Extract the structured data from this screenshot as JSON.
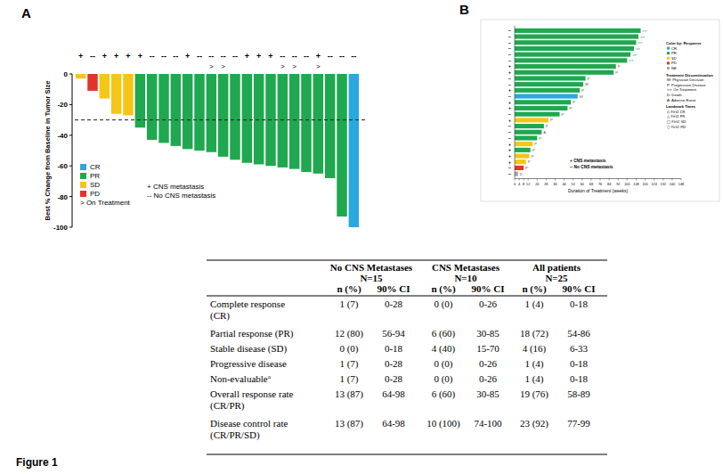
{
  "figure_label": "Figure 1",
  "chart_data": [
    {
      "type": "bar",
      "panel_label": "A",
      "y_label": "Best % Change from Baseline in Tumor Size",
      "categories": [
        null,
        null,
        null,
        null,
        null,
        null,
        null,
        null,
        null,
        null,
        null,
        null,
        null,
        null,
        null,
        null,
        null,
        null,
        null,
        null,
        null,
        null,
        null,
        null
      ],
      "values": [
        -3,
        -11,
        -16,
        -26,
        -27,
        -35,
        -43,
        -45,
        -47,
        -49,
        -50,
        -51,
        -54,
        -56,
        -58,
        -59,
        -60,
        -61,
        -62,
        -64,
        -65,
        -68,
        -93,
        -100
      ],
      "colors": [
        "#f5c518",
        "#e2342b",
        "#f5c518",
        "#f5c518",
        "#f5c518",
        "#1fa84f",
        "#1fa84f",
        "#1fa84f",
        "#1fa84f",
        "#1fa84f",
        "#1fa84f",
        "#1fa84f",
        "#1fa84f",
        "#1fa84f",
        "#1fa84f",
        "#1fa84f",
        "#1fa84f",
        "#1fa84f",
        "#1fa84f",
        "#1fa84f",
        "#1fa84f",
        "#1fa84f",
        "#1fa84f",
        "#29a8e0"
      ],
      "ylim": [
        -100,
        0
      ],
      "yticks": [
        0,
        -20,
        -40,
        -60,
        -80,
        -100
      ],
      "reference_line": -30,
      "cns_labels": [
        "+",
        "--",
        "+",
        "+",
        "+",
        "+",
        "--",
        "--",
        "--",
        "+",
        "--",
        "--",
        "--",
        "--",
        "+",
        "+",
        "+",
        "--",
        "--",
        "--",
        "+",
        "--",
        "--",
        "--"
      ],
      "on_treatment_labels": [
        null,
        null,
        null,
        null,
        null,
        null,
        null,
        null,
        null,
        null,
        null,
        ">",
        ">",
        null,
        null,
        null,
        null,
        ">",
        ">",
        null,
        ">",
        null,
        null,
        null
      ],
      "legend_items": [
        {
          "name": "CR",
          "color": "#29a8e0"
        },
        {
          "name": "PR",
          "color": "#1fa84f"
        },
        {
          "name": "SD",
          "color": "#f5c518"
        },
        {
          "name": "PD",
          "color": "#e2342b"
        }
      ],
      "on_treatment_legend": ">  On Treatment",
      "cns_legend": [
        "+ CNS metastasis",
        "-- No CNS metastasis"
      ]
    },
    {
      "type": "bar",
      "orientation": "horizontal",
      "panel_label": "B",
      "x_label": "Duration of Treatment (weeks)",
      "categories": [
        "--",
        "--",
        "--",
        "--",
        "--",
        "--",
        "+",
        "+",
        "--",
        "--",
        "+",
        "--",
        "+",
        "+",
        "--",
        "+",
        "--",
        "--",
        "--",
        "+",
        "+",
        "+",
        "+",
        "--",
        "--"
      ],
      "values": [
        112,
        110,
        108,
        106,
        103,
        100,
        90,
        88,
        63,
        61,
        58,
        56,
        50,
        47,
        40,
        30,
        26,
        24,
        20,
        16,
        14,
        13,
        10,
        8,
        3
      ],
      "colors": [
        "#1fa84f",
        "#1fa84f",
        "#1fa84f",
        "#1fa84f",
        "#1fa84f",
        "#1fa84f",
        "#1fa84f",
        "#1fa84f",
        "#1fa84f",
        "#1fa84f",
        "#1fa84f",
        "#29a8e0",
        "#1fa84f",
        "#1fa84f",
        "#1fa84f",
        "#f5c518",
        "#1fa84f",
        "#1fa84f",
        "#1fa84f",
        "#f5c518",
        "#1fa84f",
        "#f5c518",
        "#f5c518",
        "#e2342b",
        "#a6a6a6"
      ],
      "end_labels": [
        ">>",
        ">>",
        ">>",
        ">>",
        ">>",
        ">>",
        "P",
        "P",
        "P",
        "W",
        "P",
        "W",
        "P",
        "P",
        "P",
        "P",
        "P",
        "A",
        "P",
        "P",
        "P",
        "P",
        "P",
        "P",
        "D"
      ],
      "xlim": [
        0,
        148
      ],
      "xticks": [
        0,
        4,
        8,
        12,
        20,
        28,
        36,
        44,
        52,
        60,
        68,
        76,
        84,
        92,
        100,
        108,
        116,
        124,
        132,
        140,
        148
      ],
      "legend_title": "Color by: Response",
      "legend_items": [
        {
          "name": "CR",
          "color": "#29a8e0"
        },
        {
          "name": "PR",
          "color": "#1fa84f"
        },
        {
          "name": "SD",
          "color": "#f5c518"
        },
        {
          "name": "PD",
          "color": "#e2342b"
        },
        {
          "name": "NE",
          "color": "#a6a6a6"
        }
      ],
      "discontinuation_title": "Treatment Discontinuation",
      "discontinuation_items": [
        "W: Physician Decision",
        "P: Progressive Disease",
        ">>: On Treatment",
        "D: Death",
        "A: Adverse Event"
      ],
      "landmark_title": "Landmark Times",
      "landmark_items": [
        "◇ First CR",
        "△ First PR",
        "□ First SD",
        "○ First PD"
      ],
      "cns_legend": [
        "+ CNS metastasis",
        "-- No CNS metastasis"
      ]
    }
  ],
  "table": {
    "groups": [
      {
        "title": "No CNS Metastases",
        "n": "N=15"
      },
      {
        "title": "CNS Metastases",
        "n": "N=10"
      },
      {
        "title": "All patients",
        "n": "N=25"
      }
    ],
    "sub_headers": [
      "n (%)",
      "90% CI",
      "n (%)",
      "90% CI",
      "n (%)",
      "90% CI"
    ],
    "rows": [
      {
        "label_lines": [
          "Complete response",
          "(CR)"
        ],
        "cells": [
          "1 (7)",
          "0-28",
          "0 (0)",
          "0-26",
          "1 (4)",
          "0-18"
        ]
      },
      {
        "label_lines": [
          "Partial response (PR)"
        ],
        "cells": [
          "12 (80)",
          "56-94",
          "6 (60)",
          "30-85",
          "18 (72)",
          "54-86"
        ]
      },
      {
        "label_lines": [
          "Stable disease (SD)"
        ],
        "cells": [
          "0 (0)",
          "0-18",
          "4 (40)",
          "15-70",
          "4 (16)",
          "6-33"
        ]
      },
      {
        "label_lines": [
          "Progressive disease"
        ],
        "cells": [
          "1 (7)",
          "0-28",
          "0 (0)",
          "0-26",
          "1 (4)",
          "0-18"
        ]
      },
      {
        "label_lines": [
          "Non-evaluable"
        ],
        "superscript": "a",
        "cells": [
          "1 (7)",
          "0-28",
          "0 (0)",
          "0-26",
          "1 (4)",
          "0-18"
        ]
      },
      {
        "label_lines": [
          "Overall response rate",
          "(CR/PR)"
        ],
        "cells": [
          "13 (87)",
          "64-98",
          "6 (60)",
          "30-85",
          "19 (76)",
          "58-89"
        ]
      },
      {
        "label_lines": [
          "Disease control rate",
          "(CR/PR/SD)"
        ],
        "cells": [
          "13 (87)",
          "64-98",
          "10 (100)",
          "74-100",
          "23 (92)",
          "77-99"
        ]
      }
    ]
  }
}
